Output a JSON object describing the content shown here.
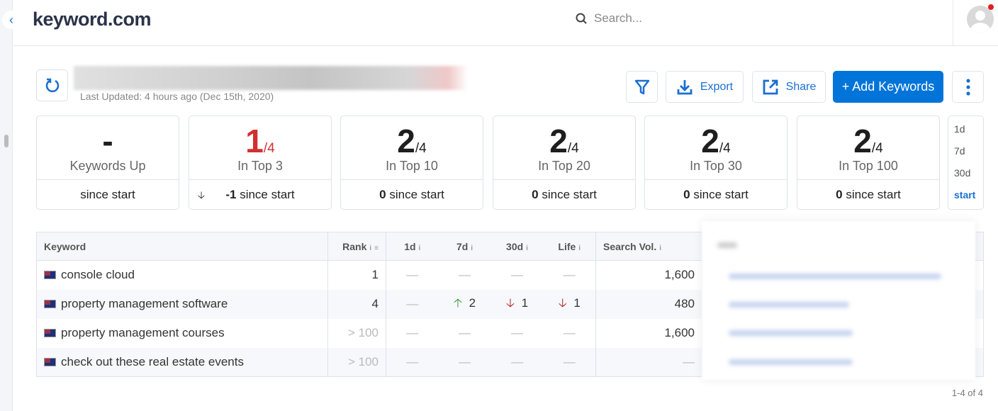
{
  "header": {
    "logo": "keyword.com",
    "search_placeholder": "Search...",
    "notification_color": "#e02020"
  },
  "project": {
    "last_updated": "Last Updated: 4 hours ago (Dec 15th, 2020)"
  },
  "toolbar": {
    "export": "Export",
    "share": "Share",
    "add": "+ Add Keywords",
    "accent": "#0074d9"
  },
  "cards": [
    {
      "value": "-",
      "total": "",
      "label": "Keywords Up",
      "delta": "",
      "since": "since start"
    },
    {
      "value": "1",
      "total": "/4",
      "label": "In Top 3",
      "delta": "-1",
      "since": "since start",
      "value_color": "#d03030",
      "arrow": "down"
    },
    {
      "value": "2",
      "total": "/4",
      "label": "In Top 10",
      "delta": "0",
      "since": "since start"
    },
    {
      "value": "2",
      "total": "/4",
      "label": "In Top 20",
      "delta": "0",
      "since": "since start"
    },
    {
      "value": "2",
      "total": "/4",
      "label": "In Top 30",
      "delta": "0",
      "since": "since start"
    },
    {
      "value": "2",
      "total": "/4",
      "label": "In Top 100",
      "delta": "0",
      "since": "since start"
    }
  ],
  "periods": [
    "1d",
    "7d",
    "30d",
    "start"
  ],
  "active_period": "start",
  "table": {
    "headers": [
      "Keyword",
      "Rank",
      "1d",
      "7d",
      "30d",
      "Life",
      "Search Vol."
    ],
    "rows": [
      {
        "keyword": "console cloud",
        "rank": "1",
        "d1": "—",
        "d7": "—",
        "d30": "—",
        "life": "—",
        "vol": "1,600"
      },
      {
        "keyword": "property management software",
        "rank": "4",
        "d1": "—",
        "d7": "2",
        "d30": "1",
        "life": "1",
        "vol": "480"
      },
      {
        "keyword": "property management courses",
        "rank": "> 100",
        "d1": "—",
        "d7": "—",
        "d30": "—",
        "life": "—",
        "vol": "1,600"
      },
      {
        "keyword": "check out these real estate events",
        "rank": "> 100",
        "d1": "—",
        "d7": "—",
        "d30": "—",
        "life": "—",
        "vol": "—"
      }
    ]
  },
  "pagination": "1-4 of 4"
}
